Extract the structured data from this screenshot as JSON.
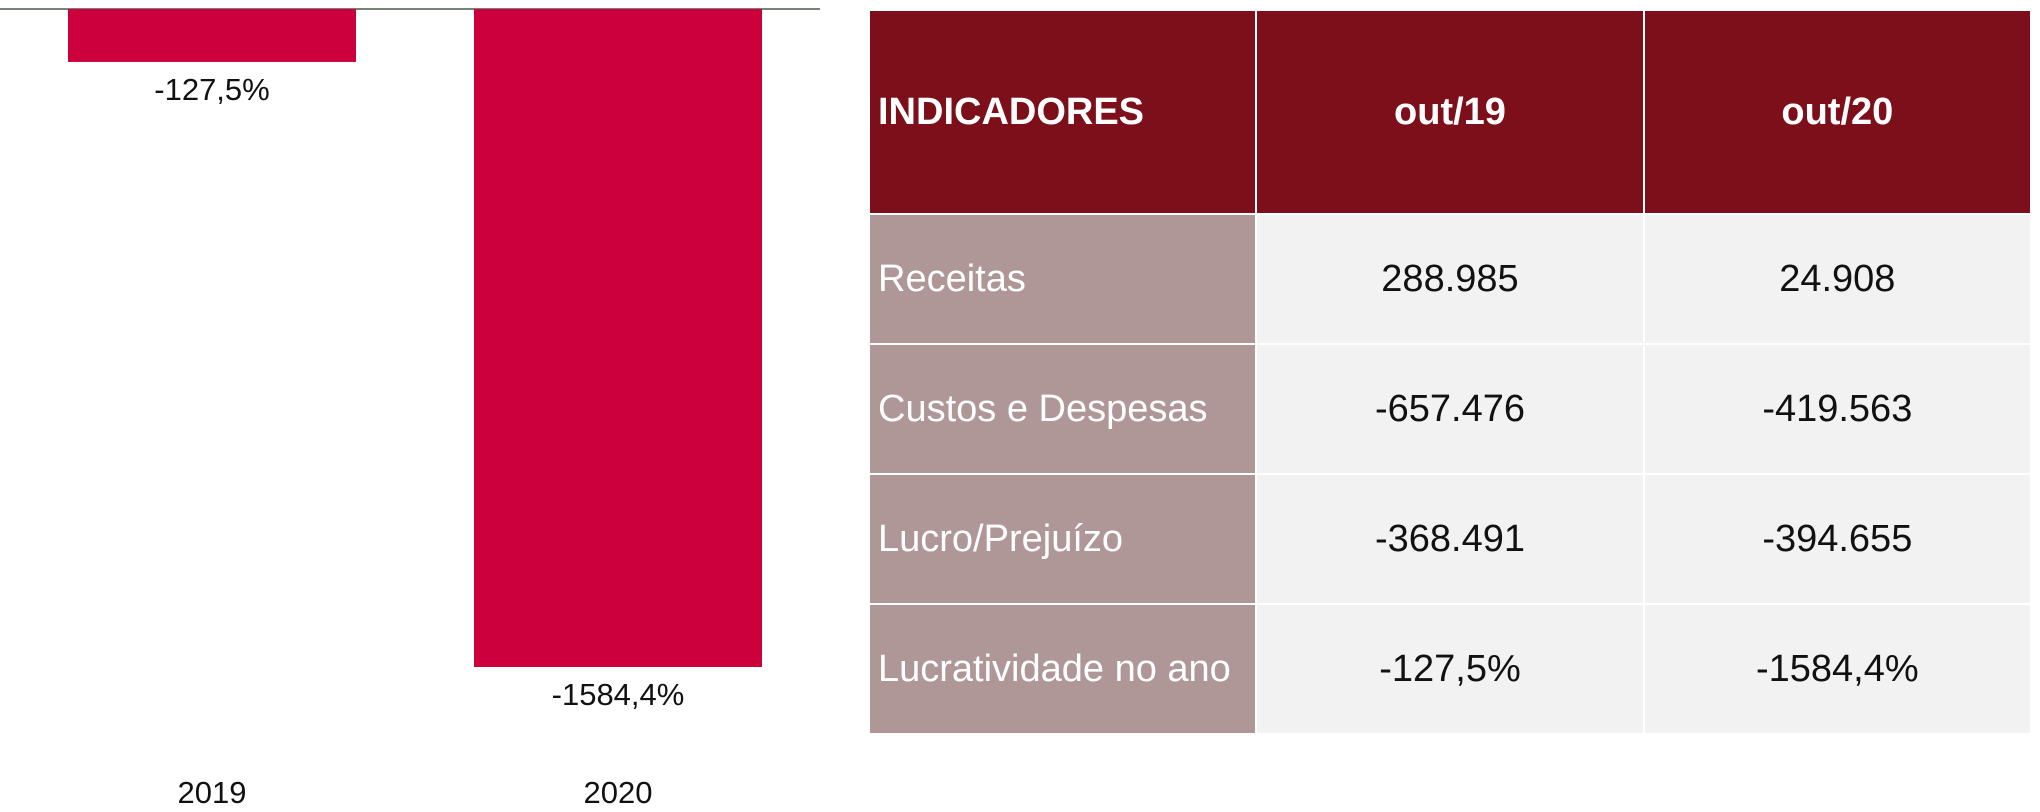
{
  "chart_data": {
    "type": "bar",
    "categories": [
      "2019",
      "2020"
    ],
    "values": [
      -127.5,
      -1584.4
    ],
    "value_labels": [
      "-127,5%",
      "-1584,4%"
    ],
    "color": "#cc003d"
  },
  "table": {
    "header": [
      "INDICADORES",
      "out/19",
      "out/20"
    ],
    "rows": [
      [
        "Receitas",
        "288.985",
        "24.908"
      ],
      [
        "Custos e Despesas",
        "-657.476",
        "-419.563"
      ],
      [
        "Lucro/Prejuízo",
        "-368.491",
        "-394.655"
      ],
      [
        "Lucratividade no ano",
        "-127,5%",
        "-1584,4%"
      ]
    ]
  }
}
